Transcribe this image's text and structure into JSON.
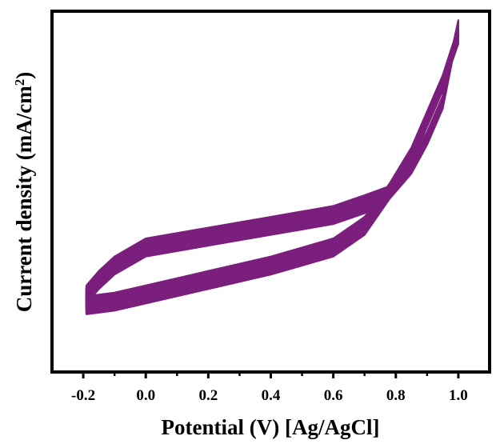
{
  "chart_data": {
    "type": "line",
    "title": "",
    "xlabel": "Potential (V) [Ag/AgCl]",
    "ylabel_main": "Current density (mA/cm",
    "ylabel_sup": "2",
    "ylabel_close": ")",
    "xlim": [
      -0.3,
      1.1
    ],
    "xticks": [
      {
        "value": -0.2,
        "label": "-0.2"
      },
      {
        "value": 0.0,
        "label": "0.0"
      },
      {
        "value": 0.2,
        "label": "0.2"
      },
      {
        "value": 0.4,
        "label": "0.4"
      },
      {
        "value": 0.6,
        "label": "0.6"
      },
      {
        "value": 0.8,
        "label": "0.8"
      },
      {
        "value": 1.0,
        "label": "1.0"
      }
    ],
    "x_minor_ticks": [
      -0.1,
      0.1,
      0.3,
      0.5,
      0.7,
      0.9
    ],
    "y_tick_labels_shown": false,
    "grid": false,
    "legend": "none",
    "line_color": "#7b1f7d",
    "cycles_count": 24,
    "ylim": [
      0,
      100
    ],
    "y_units_note": "relative (no y tick labels printed)",
    "cycle_shape": {
      "forward_scan": [
        [
          -0.19,
          18
        ],
        [
          -0.1,
          19
        ],
        [
          0.0,
          21
        ],
        [
          0.2,
          25
        ],
        [
          0.4,
          29
        ],
        [
          0.6,
          34
        ],
        [
          0.7,
          40
        ],
        [
          0.78,
          50
        ],
        [
          0.85,
          60
        ],
        [
          0.9,
          70
        ],
        [
          0.95,
          80
        ],
        [
          0.98,
          88
        ],
        [
          1.0,
          93
        ]
      ],
      "reverse_scan": [
        [
          1.0,
          93
        ],
        [
          0.98,
          85
        ],
        [
          0.95,
          72
        ],
        [
          0.9,
          62
        ],
        [
          0.85,
          54
        ],
        [
          0.78,
          47
        ],
        [
          0.7,
          43
        ],
        [
          0.6,
          40
        ],
        [
          0.4,
          37
        ],
        [
          0.2,
          34
        ],
        [
          0.0,
          31
        ],
        [
          -0.1,
          26
        ],
        [
          -0.15,
          22
        ],
        [
          -0.19,
          18
        ]
      ]
    }
  }
}
